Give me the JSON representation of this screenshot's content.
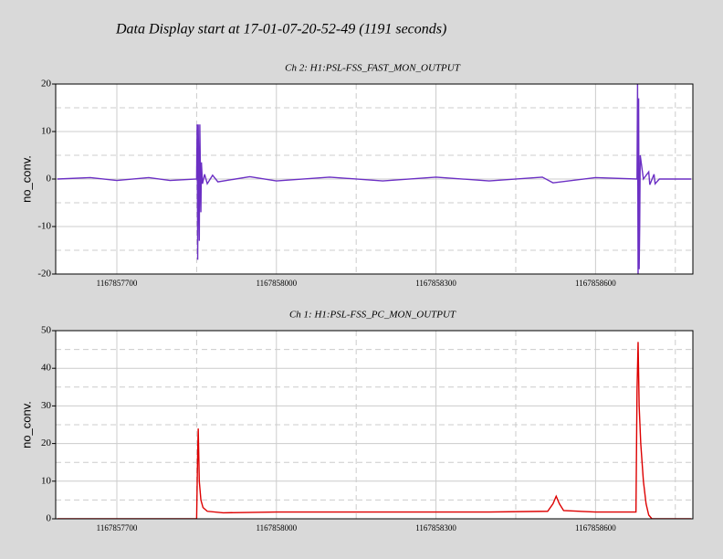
{
  "title": "Data Display start at 17-01-07-20-52-49 (1191 seconds)",
  "chart_data": [
    {
      "type": "line",
      "title": "Ch 2: H1:PSL-FSS_FAST_MON_OUTPUT",
      "ylabel": "no_conv.",
      "xlim": [
        1167857585,
        1167858783
      ],
      "xticks": [
        1167857700,
        1167858000,
        1167858300,
        1167858600
      ],
      "xminorticks": [
        1167857850,
        1167858150,
        1167858450,
        1167858750
      ],
      "ylim": [
        -20,
        20
      ],
      "yticks": [
        -20,
        -10,
        0,
        10,
        20
      ],
      "yminorticks": [
        -15,
        -5,
        5,
        15
      ],
      "grid": true,
      "series": [
        {
          "name": "H1:PSL-FSS_FAST_MON_OUTPUT",
          "color": "#6b2fc4",
          "x": [
            1167857588,
            1167857650,
            1167857700,
            1167857760,
            1167857800,
            1167857850,
            1167857851,
            1167857852,
            1167857853,
            1167857855,
            1167857856,
            1167857858,
            1167857859,
            1167857861,
            1167857865,
            1167857870,
            1167857880,
            1167857890,
            1167857950,
            1167858000,
            1167858100,
            1167858200,
            1167858300,
            1167858400,
            1167858500,
            1167858520,
            1167858600,
            1167858678,
            1167858679,
            1167858680,
            1167858681,
            1167858682,
            1167858683,
            1167858684,
            1167858690,
            1167858700,
            1167858702,
            1167858710,
            1167858712,
            1167858720,
            1167858780
          ],
          "values": [
            0,
            0.3,
            -0.3,
            0.3,
            -0.3,
            0,
            11.5,
            -17,
            11.5,
            -13,
            11.5,
            -7,
            3.5,
            -1,
            1,
            -1,
            0.8,
            -0.6,
            0.5,
            -0.4,
            0.4,
            -0.4,
            0.4,
            -0.4,
            0.4,
            -0.8,
            0.3,
            0,
            20,
            -20,
            17,
            -19,
            -10,
            5,
            0,
            1.5,
            -1.2,
            1,
            -1,
            0,
            0
          ]
        }
      ]
    },
    {
      "type": "line",
      "title": "Ch 1: H1:PSL-FSS_PC_MON_OUTPUT",
      "ylabel": "no_conv.",
      "xlim": [
        1167857585,
        1167858783
      ],
      "xticks": [
        1167857700,
        1167858000,
        1167858300,
        1167858600
      ],
      "xminorticks": [
        1167857850,
        1167858150,
        1167858450,
        1167858750
      ],
      "ylim": [
        0,
        50
      ],
      "yticks": [
        0,
        10,
        20,
        30,
        40,
        50
      ],
      "yminorticks": [
        5,
        15,
        25,
        35,
        45
      ],
      "grid": true,
      "series": [
        {
          "name": "H1:PSL-FSS_PC_MON_OUTPUT",
          "color": "#dd0000",
          "x": [
            1167857588,
            1167857850,
            1167857852,
            1167857853,
            1167857855,
            1167857858,
            1167857862,
            1167857870,
            1167857900,
            1167858000,
            1167858200,
            1167858400,
            1167858510,
            1167858520,
            1167858526,
            1167858532,
            1167858540,
            1167858600,
            1167858676,
            1167858678,
            1167858680,
            1167858682,
            1167858685,
            1167858690,
            1167858695,
            1167858700,
            1167858706,
            1167858780
          ],
          "values": [
            0,
            0,
            18,
            24,
            10,
            5,
            3,
            2,
            1.6,
            1.8,
            1.8,
            1.8,
            2,
            4,
            6,
            4,
            2.2,
            1.8,
            1.8,
            34,
            47,
            30,
            20,
            10,
            4,
            1,
            0,
            0
          ]
        }
      ]
    }
  ]
}
